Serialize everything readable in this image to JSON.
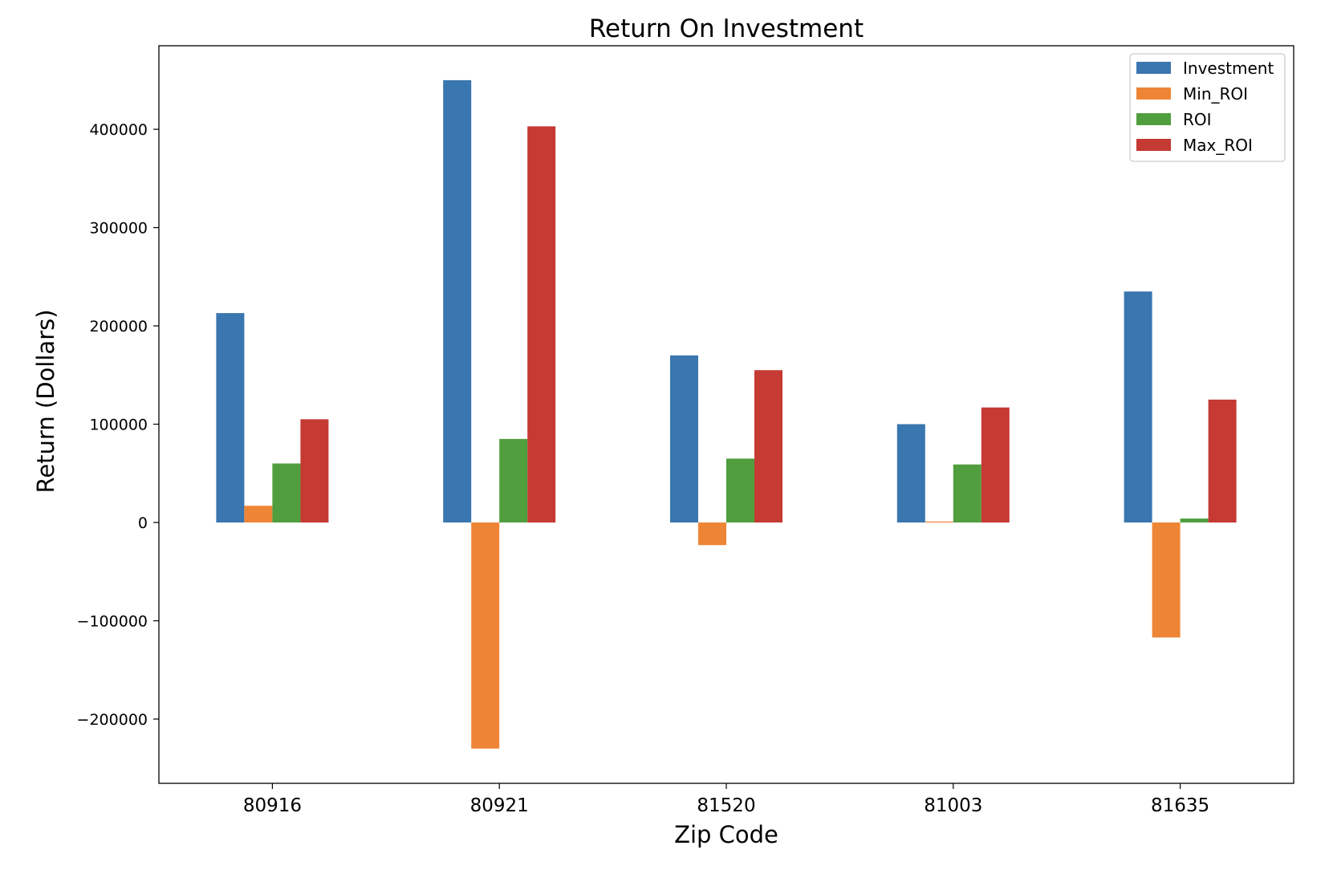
{
  "chart_data": {
    "type": "bar",
    "title": "Return On Investment",
    "xlabel": "Zip Code",
    "ylabel": "Return (Dollars)",
    "categories": [
      "80916",
      "80921",
      "81520",
      "81003",
      "81635"
    ],
    "series": [
      {
        "name": "Investment",
        "color": "#3a76af",
        "values": [
          213000,
          450000,
          170000,
          100000,
          235000
        ]
      },
      {
        "name": "Min_ROI",
        "color": "#ee8536",
        "values": [
          17000,
          -230000,
          -23000,
          1000,
          -117000
        ]
      },
      {
        "name": "ROI",
        "color": "#509e3e",
        "values": [
          60000,
          85000,
          65000,
          59000,
          4000
        ]
      },
      {
        "name": "Max_ROI",
        "color": "#c53a33",
        "values": [
          105000,
          403000,
          155000,
          117000,
          125000
        ]
      }
    ],
    "ylim": [
      -266000,
      485000
    ],
    "yticks": [
      -200000,
      -100000,
      0,
      100000,
      200000,
      300000,
      400000
    ],
    "ytick_labels": [
      "−200000",
      "−100000",
      "0",
      "100000",
      "200000",
      "300000",
      "400000"
    ],
    "grid": false,
    "legend_position": "top-right"
  }
}
